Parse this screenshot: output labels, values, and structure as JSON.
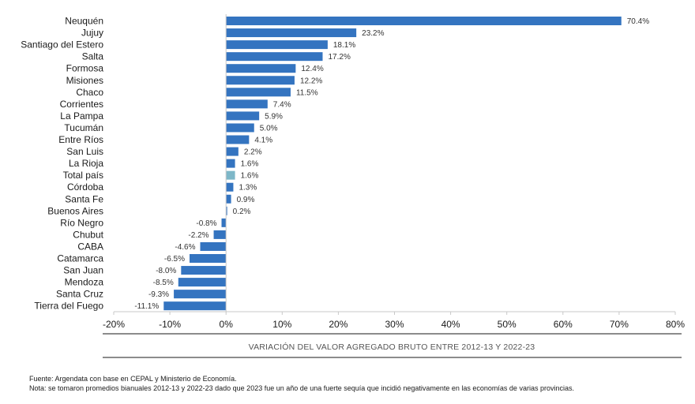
{
  "chart_data": {
    "type": "bar",
    "orientation": "horizontal",
    "categories": [
      "Neuquén",
      "Jujuy",
      "Santiago del Estero",
      "Salta",
      "Formosa",
      "Misiones",
      "Chaco",
      "Corrientes",
      "La Pampa",
      "Tucumán",
      "Entre Ríos",
      "San Luis",
      "La Rioja",
      "Total país",
      "Córdoba",
      "Santa Fe",
      "Buenos Aires",
      "Río Negro",
      "Chubut",
      "CABA",
      "Catamarca",
      "San Juan",
      "Mendoza",
      "Santa Cruz",
      "Tierra del Fuego"
    ],
    "values": [
      70.4,
      23.2,
      18.1,
      17.2,
      12.4,
      12.2,
      11.5,
      7.4,
      5.9,
      5.0,
      4.1,
      2.2,
      1.6,
      1.6,
      1.3,
      0.9,
      0.2,
      -0.8,
      -2.2,
      -4.6,
      -6.5,
      -8.0,
      -8.5,
      -9.3,
      -11.1
    ],
    "value_labels": [
      "70.4%",
      "23.2%",
      "18.1%",
      "17.2%",
      "12.4%",
      "12.2%",
      "11.5%",
      "7.4%",
      "5.9%",
      "5.0%",
      "4.1%",
      "2.2%",
      "1.6%",
      "1.6%",
      "1.3%",
      "0.9%",
      "0.2%",
      "-0.8%",
      "-2.2%",
      "-4.6%",
      "-6.5%",
      "-8.0%",
      "-8.5%",
      "-9.3%",
      "-11.1%"
    ],
    "highlight_category": "Total país",
    "xlim": [
      -20,
      80
    ],
    "xticks": [
      -20,
      -10,
      0,
      10,
      20,
      30,
      40,
      50,
      60,
      70,
      80
    ],
    "xtick_labels": [
      "-20%",
      "-10%",
      "0%",
      "10%",
      "20%",
      "30%",
      "40%",
      "50%",
      "60%",
      "70%",
      "80%"
    ],
    "xlabel": "VARIACIÓN DEL VALOR AGREGADO BRUTO ENTRE 2012-13 Y 2022-23",
    "colors": {
      "bar": "#3474c0",
      "highlight": "#7db7c8",
      "axis": "#c8c8c8"
    },
    "grid": false,
    "legend": "none"
  },
  "footnotes": {
    "source": "Fuente: Argendata con base en CEPAL y Ministerio de Economía.",
    "note": "Nota: se tomaron promedios bianuales 2012-13 y 2022-23 dado que 2023 fue un año de una fuerte sequía que incidió negativamente en las economías de varias provincias."
  }
}
